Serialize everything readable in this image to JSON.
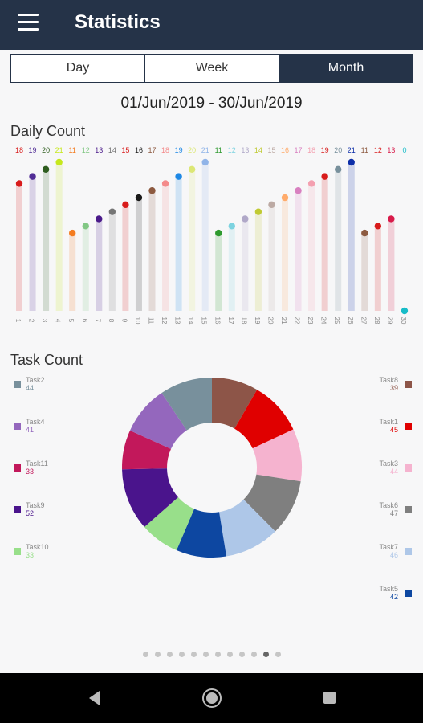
{
  "app": {
    "title": "Statistics"
  },
  "tabs": [
    {
      "label": "Day"
    },
    {
      "label": "Week"
    },
    {
      "label": "Month",
      "active": true
    }
  ],
  "date_range": "01/Jun/2019  -  30/Jun/2019",
  "sections": {
    "daily": "Daily Count",
    "task": "Task Count"
  },
  "pager": {
    "total": 12,
    "active_index": 10
  },
  "chart_data": [
    {
      "type": "bar",
      "title": "Daily Count",
      "categories": [
        "1",
        "2",
        "3",
        "4",
        "5",
        "6",
        "7",
        "8",
        "9",
        "10",
        "11",
        "12",
        "13",
        "14",
        "15",
        "16",
        "17",
        "18",
        "19",
        "20",
        "21",
        "22",
        "23",
        "24",
        "25",
        "26",
        "27",
        "28",
        "29",
        "30"
      ],
      "values": [
        18,
        19,
        20,
        21,
        11,
        12,
        13,
        14,
        15,
        16,
        17,
        18,
        19,
        20,
        21,
        11,
        12,
        13,
        14,
        15,
        16,
        17,
        18,
        19,
        20,
        21,
        11,
        12,
        13,
        0
      ],
      "colors": [
        "#d81b1b",
        "#512d96",
        "#2e5d1f",
        "#c6e81b",
        "#f47c20",
        "#81c784",
        "#4a1a8a",
        "#757575",
        "#d81b1b",
        "#1a1a1a",
        "#8d5a40",
        "#f48a8a",
        "#1e88e5",
        "#dce775",
        "#90b4e8",
        "#2e9a2e",
        "#7dd3e0",
        "#b0a8c8",
        "#c0ca33",
        "#bcaaa4",
        "#ffab6b",
        "#d880c0",
        "#f4a0b0",
        "#d81b1b",
        "#78909c",
        "#0d2ea8",
        "#8d5a40",
        "#d81b1b",
        "#d81b4a",
        "#17bcc8"
      ],
      "ylim": [
        0,
        21
      ]
    },
    {
      "type": "pie",
      "title": "Task Count",
      "slices": [
        {
          "name": "Task8",
          "value": 39,
          "color": "#8d5548"
        },
        {
          "name": "Task1",
          "value": 45,
          "color": "#e00000"
        },
        {
          "name": "Task3",
          "value": 44,
          "color": "#f5b3cf"
        },
        {
          "name": "Task6",
          "value": 47,
          "color": "#7f7f7f"
        },
        {
          "name": "Task7",
          "value": 46,
          "color": "#aec7e8"
        },
        {
          "name": "Task5",
          "value": 42,
          "color": "#0d47a1"
        },
        {
          "name": "Task10",
          "value": 33,
          "color": "#98df8a"
        },
        {
          "name": "Task9",
          "value": 52,
          "color": "#4a148c"
        },
        {
          "name": "Task11",
          "value": 33,
          "color": "#c2185b"
        },
        {
          "name": "Task4",
          "value": 41,
          "color": "#9467bd"
        },
        {
          "name": "Task2",
          "value": 44,
          "color": "#78909c"
        }
      ]
    }
  ],
  "legend_left": [
    {
      "name": "Task2",
      "value": "44",
      "color": "#78909c"
    },
    {
      "name": "Task4",
      "value": "41",
      "color": "#9467bd"
    },
    {
      "name": "Task11",
      "value": "33",
      "color": "#c2185b"
    },
    {
      "name": "Task9",
      "value": "52",
      "color": "#4a148c"
    },
    {
      "name": "Task10",
      "value": "33",
      "color": "#98df8a"
    }
  ],
  "legend_right": [
    {
      "name": "Task8",
      "value": "39",
      "color": "#8d5548"
    },
    {
      "name": "Task1",
      "value": "45",
      "color": "#e00000"
    },
    {
      "name": "Task3",
      "value": "44",
      "color": "#f5b3cf"
    },
    {
      "name": "Task6",
      "value": "47",
      "color": "#7f7f7f"
    },
    {
      "name": "Task7",
      "value": "46",
      "color": "#aec7e8"
    },
    {
      "name": "Task5",
      "value": "42",
      "color": "#0d47a1"
    }
  ]
}
